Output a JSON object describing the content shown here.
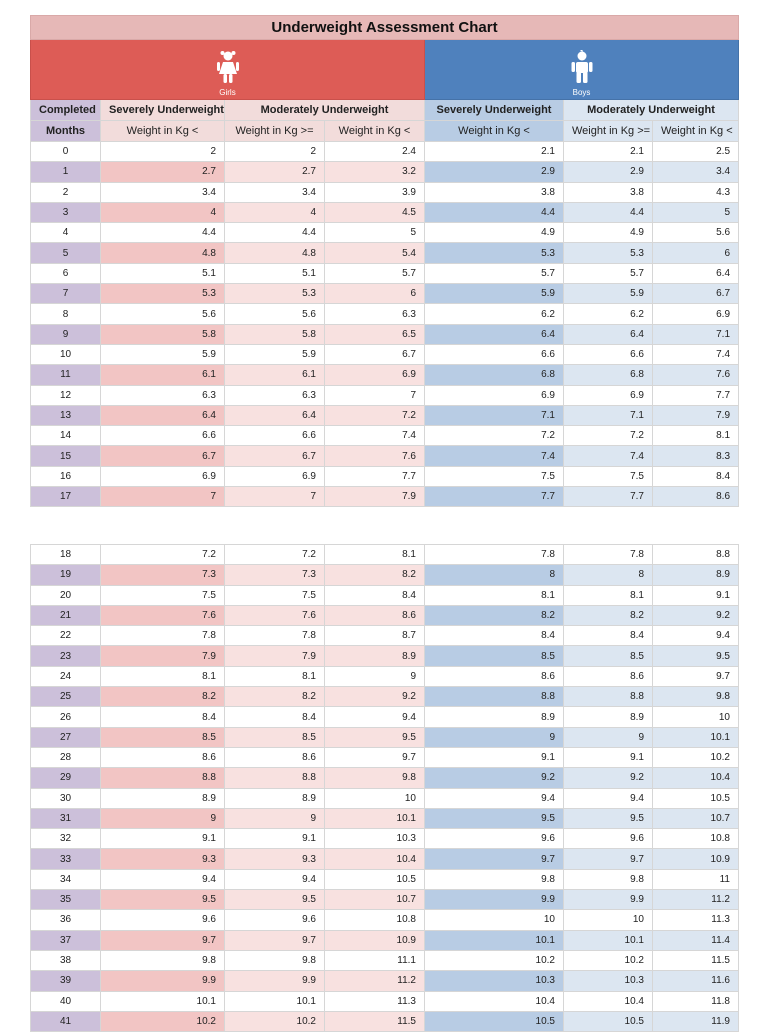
{
  "title": "Underweight Assessment Chart",
  "girls_label": "Girls",
  "boys_label": "Boys",
  "headers": {
    "completed": "Completed",
    "months": "Months",
    "girls_severe": "Severely Underweight",
    "girls_moderate": "Moderately Underweight",
    "boys_severe": "Severely Underweight",
    "boys_moderate": "Moderately Underweight",
    "weight_lt": "Weight in Kg <",
    "weight_gte": "Weight in Kg >=",
    "weight_lt2": "Weight in Kg <",
    "b_weight_lt": "Weight in Kg <",
    "b_weight_gte": "Weight in Kg >=",
    "b_weight_lt2": "Weight in Kg <"
  },
  "colors": {
    "girls": "#dd5c56",
    "boys": "#4f81bd",
    "title_bg": "#e6b8b7"
  },
  "icons": [
    "girl-icon",
    "boy-icon"
  ],
  "block1": [
    [
      "0",
      "2",
      "2",
      "2.4",
      "2.1",
      "2.1",
      "2.5"
    ],
    [
      "1",
      "2.7",
      "2.7",
      "3.2",
      "2.9",
      "2.9",
      "3.4"
    ],
    [
      "2",
      "3.4",
      "3.4",
      "3.9",
      "3.8",
      "3.8",
      "4.3"
    ],
    [
      "3",
      "4",
      "4",
      "4.5",
      "4.4",
      "4.4",
      "5"
    ],
    [
      "4",
      "4.4",
      "4.4",
      "5",
      "4.9",
      "4.9",
      "5.6"
    ],
    [
      "5",
      "4.8",
      "4.8",
      "5.4",
      "5.3",
      "5.3",
      "6"
    ],
    [
      "6",
      "5.1",
      "5.1",
      "5.7",
      "5.7",
      "5.7",
      "6.4"
    ],
    [
      "7",
      "5.3",
      "5.3",
      "6",
      "5.9",
      "5.9",
      "6.7"
    ],
    [
      "8",
      "5.6",
      "5.6",
      "6.3",
      "6.2",
      "6.2",
      "6.9"
    ],
    [
      "9",
      "5.8",
      "5.8",
      "6.5",
      "6.4",
      "6.4",
      "7.1"
    ],
    [
      "10",
      "5.9",
      "5.9",
      "6.7",
      "6.6",
      "6.6",
      "7.4"
    ],
    [
      "11",
      "6.1",
      "6.1",
      "6.9",
      "6.8",
      "6.8",
      "7.6"
    ],
    [
      "12",
      "6.3",
      "6.3",
      "7",
      "6.9",
      "6.9",
      "7.7"
    ],
    [
      "13",
      "6.4",
      "6.4",
      "7.2",
      "7.1",
      "7.1",
      "7.9"
    ],
    [
      "14",
      "6.6",
      "6.6",
      "7.4",
      "7.2",
      "7.2",
      "8.1"
    ],
    [
      "15",
      "6.7",
      "6.7",
      "7.6",
      "7.4",
      "7.4",
      "8.3"
    ],
    [
      "16",
      "6.9",
      "6.9",
      "7.7",
      "7.5",
      "7.5",
      "8.4"
    ],
    [
      "17",
      "7",
      "7",
      "7.9",
      "7.7",
      "7.7",
      "8.6"
    ]
  ],
  "block2": [
    [
      "18",
      "7.2",
      "7.2",
      "8.1",
      "7.8",
      "7.8",
      "8.8"
    ],
    [
      "19",
      "7.3",
      "7.3",
      "8.2",
      "8",
      "8",
      "8.9"
    ],
    [
      "20",
      "7.5",
      "7.5",
      "8.4",
      "8.1",
      "8.1",
      "9.1"
    ],
    [
      "21",
      "7.6",
      "7.6",
      "8.6",
      "8.2",
      "8.2",
      "9.2"
    ],
    [
      "22",
      "7.8",
      "7.8",
      "8.7",
      "8.4",
      "8.4",
      "9.4"
    ],
    [
      "23",
      "7.9",
      "7.9",
      "8.9",
      "8.5",
      "8.5",
      "9.5"
    ],
    [
      "24",
      "8.1",
      "8.1",
      "9",
      "8.6",
      "8.6",
      "9.7"
    ],
    [
      "25",
      "8.2",
      "8.2",
      "9.2",
      "8.8",
      "8.8",
      "9.8"
    ],
    [
      "26",
      "8.4",
      "8.4",
      "9.4",
      "8.9",
      "8.9",
      "10"
    ],
    [
      "27",
      "8.5",
      "8.5",
      "9.5",
      "9",
      "9",
      "10.1"
    ],
    [
      "28",
      "8.6",
      "8.6",
      "9.7",
      "9.1",
      "9.1",
      "10.2"
    ],
    [
      "29",
      "8.8",
      "8.8",
      "9.8",
      "9.2",
      "9.2",
      "10.4"
    ],
    [
      "30",
      "8.9",
      "8.9",
      "10",
      "9.4",
      "9.4",
      "10.5"
    ],
    [
      "31",
      "9",
      "9",
      "10.1",
      "9.5",
      "9.5",
      "10.7"
    ],
    [
      "32",
      "9.1",
      "9.1",
      "10.3",
      "9.6",
      "9.6",
      "10.8"
    ],
    [
      "33",
      "9.3",
      "9.3",
      "10.4",
      "9.7",
      "9.7",
      "10.9"
    ],
    [
      "34",
      "9.4",
      "9.4",
      "10.5",
      "9.8",
      "9.8",
      "11"
    ],
    [
      "35",
      "9.5",
      "9.5",
      "10.7",
      "9.9",
      "9.9",
      "11.2"
    ],
    [
      "36",
      "9.6",
      "9.6",
      "10.8",
      "10",
      "10",
      "11.3"
    ],
    [
      "37",
      "9.7",
      "9.7",
      "10.9",
      "10.1",
      "10.1",
      "11.4"
    ],
    [
      "38",
      "9.8",
      "9.8",
      "11.1",
      "10.2",
      "10.2",
      "11.5"
    ],
    [
      "39",
      "9.9",
      "9.9",
      "11.2",
      "10.3",
      "10.3",
      "11.6"
    ],
    [
      "40",
      "10.1",
      "10.1",
      "11.3",
      "10.4",
      "10.4",
      "11.8"
    ],
    [
      "41",
      "10.2",
      "10.2",
      "11.5",
      "10.5",
      "10.5",
      "11.9"
    ]
  ]
}
